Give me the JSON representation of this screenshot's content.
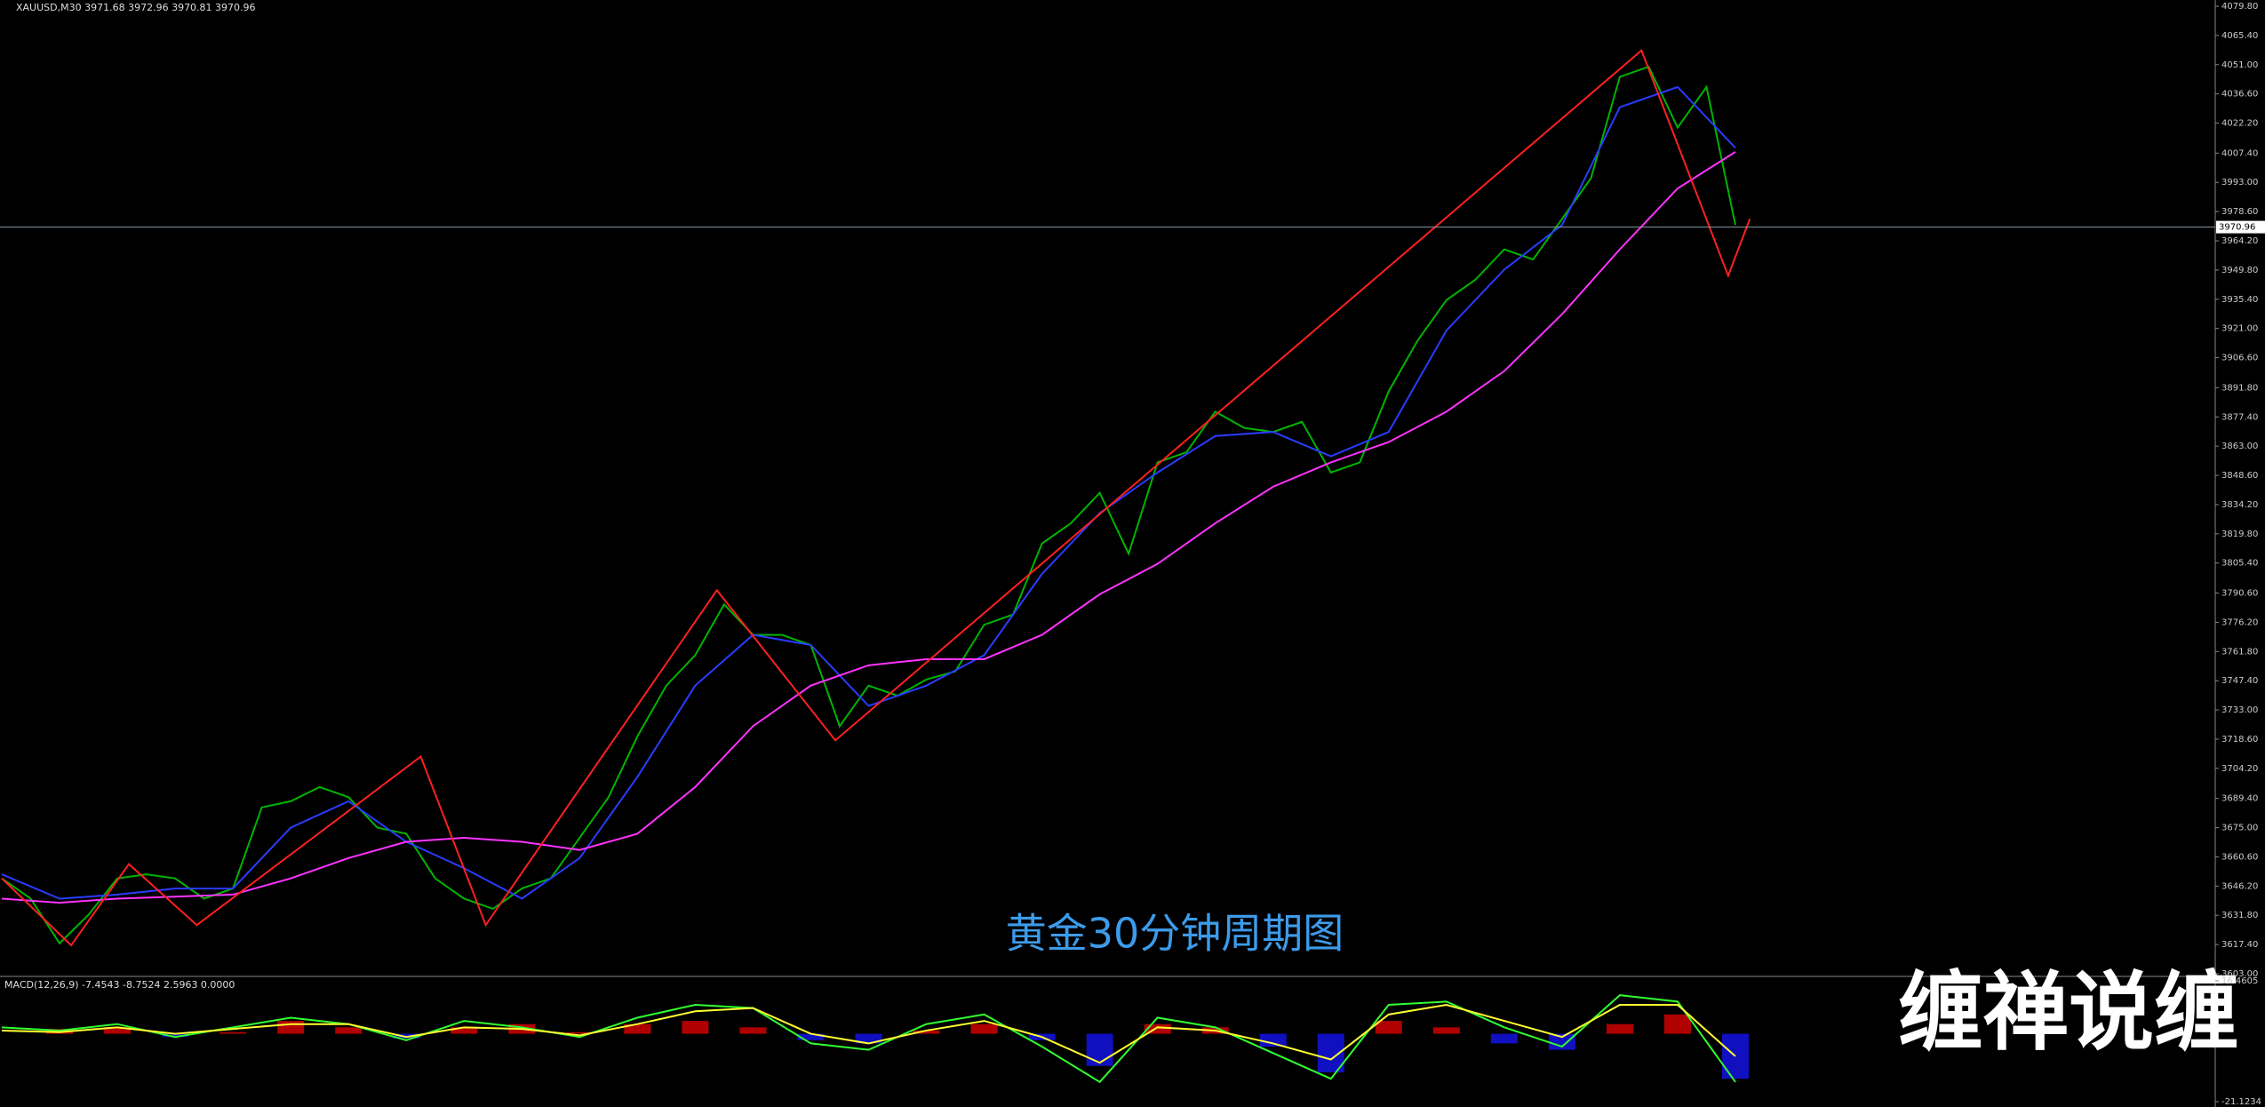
{
  "chart_data": [
    {
      "type": "line",
      "title": "XAUUSD,M30  3971.68 3972.96 3970.81 3970.96",
      "annotation": "黄金30分钟周期图",
      "watermark": "缠禅说缠",
      "last_price": {
        "value": 3970.96,
        "label": "3970.96"
      },
      "ylim": [
        3603.0,
        4079.8
      ],
      "yticks": [
        {
          "value": 4079.8,
          "label": "4079.80"
        },
        {
          "value": 4065.4,
          "label": "4065.40"
        },
        {
          "value": 4051.0,
          "label": "4051.00"
        },
        {
          "value": 4036.6,
          "label": "4036.60"
        },
        {
          "value": 4022.2,
          "label": "4022.20"
        },
        {
          "value": 4007.4,
          "label": "4007.40"
        },
        {
          "value": 3993.0,
          "label": "3993.00"
        },
        {
          "value": 3978.6,
          "label": "3978.60"
        },
        {
          "value": 3964.2,
          "label": "3964.20"
        },
        {
          "value": 3949.8,
          "label": "3949.80"
        },
        {
          "value": 3935.4,
          "label": "3935.40"
        },
        {
          "value": 3921.0,
          "label": "3921.00"
        },
        {
          "value": 3906.6,
          "label": "3906.60"
        },
        {
          "value": 3891.8,
          "label": "3891.80"
        },
        {
          "value": 3877.4,
          "label": "3877.40"
        },
        {
          "value": 3863.0,
          "label": "3863.00"
        },
        {
          "value": 3848.6,
          "label": "3848.60"
        },
        {
          "value": 3834.2,
          "label": "3834.20"
        },
        {
          "value": 3819.8,
          "label": "3819.80"
        },
        {
          "value": 3805.4,
          "label": "3805.40"
        },
        {
          "value": 3790.6,
          "label": "3790.60"
        },
        {
          "value": 3776.2,
          "label": "3776.20"
        },
        {
          "value": 3761.8,
          "label": "3761.80"
        },
        {
          "value": 3747.4,
          "label": "3747.40"
        },
        {
          "value": 3733.0,
          "label": "3733.00"
        },
        {
          "value": 3718.6,
          "label": "3718.60"
        },
        {
          "value": 3704.2,
          "label": "3704.20"
        },
        {
          "value": 3689.4,
          "label": "3689.40"
        },
        {
          "value": 3675.0,
          "label": "3675.00"
        },
        {
          "value": 3660.6,
          "label": "3660.60"
        },
        {
          "value": 3646.2,
          "label": "3646.20"
        },
        {
          "value": 3631.8,
          "label": "3631.80"
        },
        {
          "value": 3617.4,
          "label": "3617.40"
        },
        {
          "value": 3603.0,
          "label": "3603.00"
        }
      ],
      "series": [
        {
          "color": "#00b400",
          "values": [
            3650,
            3640,
            3618,
            3632,
            3650,
            3652,
            3650,
            3640,
            3645,
            3685,
            3688,
            3695,
            3690,
            3675,
            3672,
            3650,
            3640,
            3635,
            3645,
            3650,
            3670,
            3690,
            3720,
            3745,
            3760,
            3785,
            3770,
            3770,
            3765,
            3725,
            3745,
            3740,
            3748,
            3752,
            3775,
            3780,
            3815,
            3825,
            3840,
            3810,
            3855,
            3860,
            3880,
            3872,
            3870,
            3875,
            3850,
            3855,
            3890,
            3915,
            3935,
            3945,
            3960,
            3955,
            3975,
            3995,
            4045,
            4050,
            4020,
            4040,
            3972
          ]
        },
        {
          "color": "#2a3cff",
          "values": [
            3652,
            3640,
            3642,
            3645,
            3645,
            3675,
            3688,
            3668,
            3655,
            3640,
            3660,
            3700,
            3745,
            3770,
            3765,
            3735,
            3745,
            3760,
            3800,
            3830,
            3850,
            3868,
            3870,
            3858,
            3870,
            3920,
            3950,
            3972,
            4030,
            4040,
            4010
          ]
        },
        {
          "color": "#ff33ff",
          "values": [
            3640,
            3638,
            3640,
            3641,
            3642,
            3650,
            3660,
            3668,
            3670,
            3668,
            3664,
            3672,
            3695,
            3725,
            3745,
            3755,
            3758,
            3758,
            3770,
            3790,
            3805,
            3825,
            3843,
            3855,
            3865,
            3880,
            3900,
            3928,
            3960,
            3990,
            4008
          ]
        },
        {
          "color": "#ff2020",
          "x": [
            0,
            2.4,
            4.4,
            6.75,
            14.5,
            16.75,
            24.75,
            28.85,
            56.75,
            59.75,
            60.5
          ],
          "values": [
            3650,
            3617,
            3657,
            3627,
            3710,
            3627,
            3792,
            3718,
            4058,
            3947,
            3975
          ]
        }
      ]
    },
    {
      "type": "bar",
      "title": "MACD(12,26,9) -7.4543 -8.7524 2.5963 0.0000",
      "ylim": [
        -21.1234,
        16.4605
      ],
      "yticks": [
        16.4605,
        -21.1234
      ],
      "up_color": "#b00000",
      "down_color": "#1010c0",
      "values": [
        0,
        1.5,
        2,
        -1,
        0.5,
        4,
        2,
        -1.5,
        2,
        3,
        0.5,
        3,
        4,
        2,
        -2,
        -3,
        1,
        3,
        -2,
        -10,
        3,
        2,
        -4,
        -12,
        4,
        2,
        -3,
        -5,
        3,
        6,
        -14
      ],
      "series": [
        {
          "color": "#30ff30",
          "values": [
            2,
            1,
            3,
            -1,
            2,
            5,
            3,
            -2,
            4,
            2,
            -1,
            5,
            9,
            8,
            -3,
            -5,
            3,
            6,
            -4,
            -15,
            5,
            2,
            -6,
            -14,
            9,
            10,
            2,
            -4,
            12,
            10,
            -15
          ]
        },
        {
          "color": "#ffff30",
          "values": [
            1,
            0.5,
            2,
            0,
            1.5,
            3,
            3,
            -1,
            2,
            1.5,
            -0.5,
            3,
            7,
            8,
            0,
            -3,
            1,
            4,
            -1,
            -9,
            2,
            1,
            -3,
            -8,
            6,
            9,
            4,
            -1,
            9,
            9,
            -7
          ]
        }
      ]
    }
  ]
}
